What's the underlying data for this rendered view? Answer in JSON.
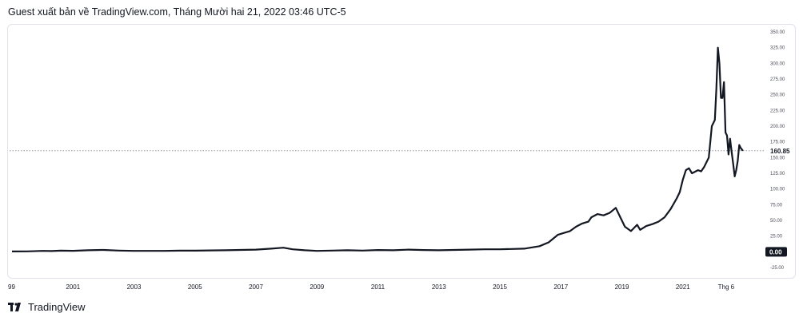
{
  "header": {
    "publisher_line": "Guest xuất bản về TradingView.com, Tháng Mười hai 21, 2022 03:46 UTC-5"
  },
  "footer": {
    "brand": "TradingView",
    "logo_icon": "tradingview-logo-icon"
  },
  "colors": {
    "line": "#131722",
    "dotted_price_line": "#9598a1",
    "price_label_bg": "#ffffff",
    "zero_label_bg": "#131722"
  },
  "chart_data": {
    "type": "line",
    "x_tick_labels": [
      "99",
      "2001",
      "2003",
      "2005",
      "2007",
      "2009",
      "2011",
      "2013",
      "2015",
      "2017",
      "2019",
      "2021",
      "Thg 6"
    ],
    "y_tick_labels": [
      "350.00",
      "325.00",
      "300.00",
      "275.00",
      "250.00",
      "225.00",
      "200.00",
      "175.00",
      "150.00",
      "125.00",
      "100.00",
      "75.00",
      "50.00",
      "25.00",
      "0.00",
      "-25.00"
    ],
    "ylim": [
      -25,
      350
    ],
    "last_price_label": "160.85",
    "last_price": 160.85,
    "zero_label": "0.00",
    "zero_value": 0,
    "grid": false,
    "series": [
      {
        "x": [
          1999.0,
          1999.5,
          2000.0,
          2000.3,
          2000.6,
          2001.0,
          2001.5,
          2002.0,
          2002.5,
          2003.0,
          2003.5,
          2004.0,
          2004.5,
          2005.0,
          2005.5,
          2006.0,
          2006.5,
          2007.0,
          2007.5,
          2007.9,
          2008.2,
          2008.6,
          2009.0,
          2009.5,
          2010.0,
          2010.5,
          2011.0,
          2011.5,
          2012.0,
          2012.5,
          2013.0,
          2013.5,
          2014.0,
          2014.5,
          2015.0,
          2015.4,
          2015.8,
          2016.0,
          2016.3,
          2016.6,
          2016.9,
          2017.1,
          2017.3,
          2017.5,
          2017.7,
          2017.9,
          2018.0,
          2018.2,
          2018.4,
          2018.6,
          2018.8,
          2018.95,
          2019.1,
          2019.3,
          2019.5,
          2019.6,
          2019.8,
          2020.0,
          2020.2,
          2020.4,
          2020.6,
          2020.8,
          2020.9,
          2021.0,
          2021.1,
          2021.2,
          2021.3,
          2021.5,
          2021.6,
          2021.7,
          2021.85,
          2021.95,
          2022.0,
          2022.05,
          2022.1,
          2022.15,
          2022.2,
          2022.25,
          2022.3,
          2022.35,
          2022.4,
          2022.45,
          2022.5,
          2022.55,
          2022.6,
          2022.65,
          2022.7,
          2022.75,
          2022.8,
          2022.85,
          2022.9,
          2022.97
        ],
        "values": [
          0.5,
          0.7,
          1.5,
          1.2,
          1.8,
          1.6,
          2.5,
          3.0,
          2.0,
          1.5,
          1.4,
          1.5,
          1.8,
          1.8,
          2.2,
          2.5,
          3.0,
          3.5,
          5.0,
          6.5,
          4.0,
          2.5,
          1.5,
          2.0,
          2.5,
          2.0,
          2.8,
          2.5,
          3.5,
          2.8,
          2.5,
          3.0,
          3.5,
          4.0,
          4.0,
          4.5,
          5.0,
          6.5,
          9.0,
          15.0,
          27.0,
          30.0,
          33.0,
          40.0,
          45.0,
          48.0,
          55.0,
          60.0,
          58.0,
          62.0,
          70.0,
          55.0,
          40.0,
          33.0,
          43.0,
          35.0,
          41.0,
          44.0,
          48.0,
          55.0,
          68.0,
          85.0,
          95.0,
          115.0,
          130.0,
          133.0,
          125.0,
          130.0,
          128.0,
          135.0,
          150.0,
          200.0,
          205.0,
          210.0,
          260.0,
          325.0,
          300.0,
          245.0,
          245.0,
          270.0,
          190.0,
          185.0,
          155.0,
          180.0,
          160.0,
          140.0,
          120.0,
          130.0,
          145.0,
          170.0,
          165.0,
          160.85
        ]
      }
    ]
  }
}
